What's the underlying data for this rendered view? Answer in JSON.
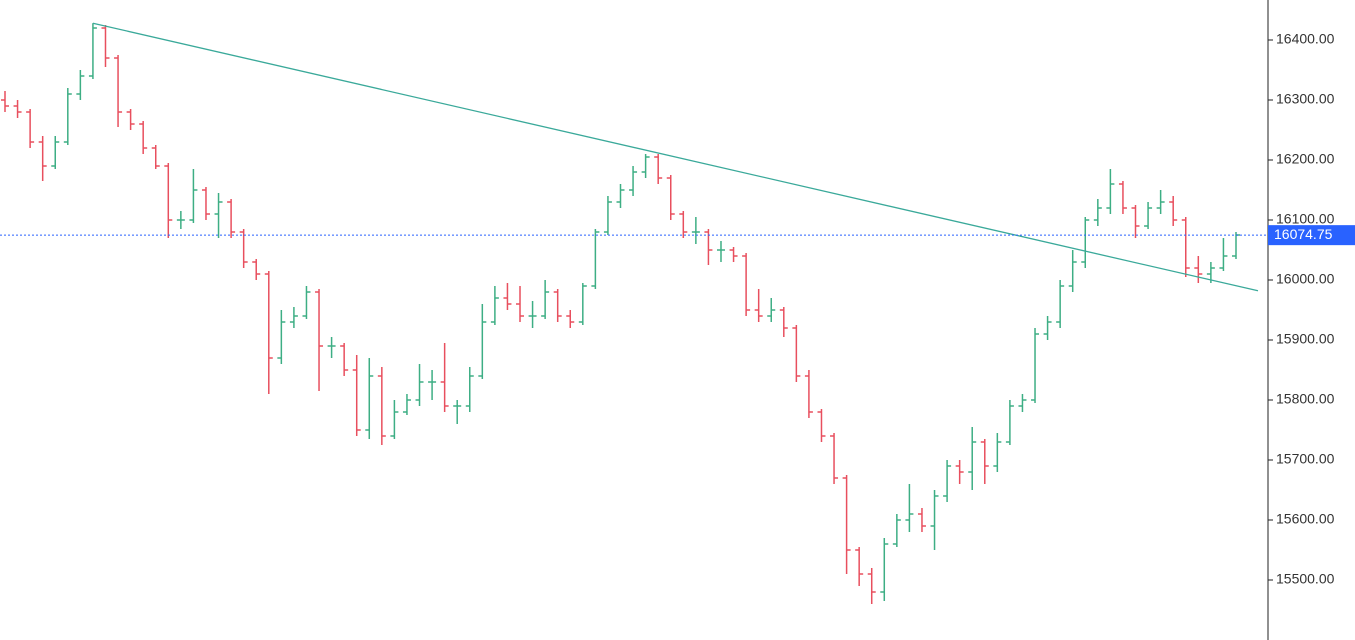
{
  "chart_data": {
    "type": "ohlc",
    "ylim": [
      15400,
      16466.67
    ],
    "yticks": [
      {
        "value": 15500,
        "label": "15500.00"
      },
      {
        "value": 15600,
        "label": "15600.00"
      },
      {
        "value": 15700,
        "label": "15700.00"
      },
      {
        "value": 15800,
        "label": "15800.00"
      },
      {
        "value": 15900,
        "label": "15900.00"
      },
      {
        "value": 16000,
        "label": "16000.00"
      },
      {
        "value": 16100,
        "label": "16100.00"
      },
      {
        "value": 16200,
        "label": "16200.00"
      },
      {
        "value": 16300,
        "label": "16300.00"
      },
      {
        "value": 16400,
        "label": "16400.00"
      }
    ],
    "up_color": "#3dae84",
    "down_color": "#e84f5e",
    "last_price": {
      "value": 16074.75,
      "label": "16074.75",
      "color": "#2962ff"
    },
    "trendline": {
      "start": 16428,
      "end": 15982,
      "color": "#3aa99a"
    },
    "ohlc": [
      [
        16300,
        16315,
        16280,
        16290
      ],
      [
        16290,
        16300,
        16270,
        16280
      ],
      [
        16280,
        16285,
        16220,
        16230
      ],
      [
        16230,
        16240,
        16165,
        16190
      ],
      [
        16190,
        16240,
        16185,
        16230
      ],
      [
        16230,
        16320,
        16225,
        16310
      ],
      [
        16310,
        16350,
        16300,
        16340
      ],
      [
        16340,
        16428,
        16335,
        16420
      ],
      [
        16420,
        16425,
        16355,
        16370
      ],
      [
        16370,
        16375,
        16255,
        16280
      ],
      [
        16280,
        16285,
        16250,
        16260
      ],
      [
        16260,
        16265,
        16210,
        16220
      ],
      [
        16220,
        16225,
        16185,
        16190
      ],
      [
        16190,
        16195,
        16070,
        16100
      ],
      [
        16100,
        16115,
        16085,
        16100
      ],
      [
        16100,
        16185,
        16095,
        16150
      ],
      [
        16150,
        16155,
        16100,
        16110
      ],
      [
        16110,
        16145,
        16070,
        16130
      ],
      [
        16130,
        16135,
        16070,
        16080
      ],
      [
        16080,
        16085,
        16020,
        16030
      ],
      [
        16030,
        16035,
        16000,
        16010
      ],
      [
        16010,
        16015,
        15810,
        15870
      ],
      [
        15870,
        15950,
        15860,
        15930
      ],
      [
        15930,
        15955,
        15920,
        15940
      ],
      [
        15940,
        15990,
        15935,
        15980
      ],
      [
        15980,
        15985,
        15815,
        15890
      ],
      [
        15890,
        15905,
        15870,
        15890
      ],
      [
        15890,
        15895,
        15840,
        15850
      ],
      [
        15850,
        15875,
        15740,
        15750
      ],
      [
        15750,
        15870,
        15735,
        15840
      ],
      [
        15840,
        15855,
        15725,
        15740
      ],
      [
        15740,
        15800,
        15735,
        15780
      ],
      [
        15780,
        15810,
        15775,
        15800
      ],
      [
        15800,
        15860,
        15790,
        15830
      ],
      [
        15830,
        15850,
        15800,
        15830
      ],
      [
        15830,
        15895,
        15780,
        15790
      ],
      [
        15790,
        15800,
        15760,
        15790
      ],
      [
        15790,
        15855,
        15780,
        15840
      ],
      [
        15840,
        15960,
        15835,
        15930
      ],
      [
        15930,
        15990,
        15925,
        15970
      ],
      [
        15970,
        15995,
        15950,
        15960
      ],
      [
        15960,
        15990,
        15930,
        15940
      ],
      [
        15940,
        15965,
        15920,
        15940
      ],
      [
        15940,
        16000,
        15935,
        15980
      ],
      [
        15980,
        15985,
        15930,
        15940
      ],
      [
        15940,
        15950,
        15920,
        15930
      ],
      [
        15930,
        15995,
        15925,
        15990
      ],
      [
        15990,
        16085,
        15985,
        16080
      ],
      [
        16080,
        16140,
        16075,
        16130
      ],
      [
        16130,
        16160,
        16120,
        16150
      ],
      [
        16150,
        16190,
        16140,
        16180
      ],
      [
        16180,
        16210,
        16170,
        16205
      ],
      [
        16205,
        16210,
        16160,
        16170
      ],
      [
        16170,
        16175,
        16100,
        16110
      ],
      [
        16110,
        16115,
        16070,
        16080
      ],
      [
        16080,
        16105,
        16060,
        16080
      ],
      [
        16080,
        16085,
        16025,
        16050
      ],
      [
        16050,
        16065,
        16030,
        16050
      ],
      [
        16050,
        16055,
        16030,
        16040
      ],
      [
        16040,
        16045,
        15940,
        15950
      ],
      [
        15950,
        15985,
        15930,
        15940
      ],
      [
        15940,
        15970,
        15930,
        15950
      ],
      [
        15950,
        15955,
        15905,
        15920
      ],
      [
        15920,
        15925,
        15830,
        15840
      ],
      [
        15840,
        15850,
        15770,
        15780
      ],
      [
        15780,
        15785,
        15730,
        15740
      ],
      [
        15740,
        15745,
        15660,
        15670
      ],
      [
        15670,
        15675,
        15510,
        15550
      ],
      [
        15550,
        15555,
        15490,
        15510
      ],
      [
        15510,
        15520,
        15460,
        15480
      ],
      [
        15480,
        15570,
        15465,
        15560
      ],
      [
        15560,
        15610,
        15555,
        15600
      ],
      [
        15600,
        15660,
        15580,
        15610
      ],
      [
        15610,
        15620,
        15580,
        15590
      ],
      [
        15590,
        15650,
        15550,
        15640
      ],
      [
        15640,
        15700,
        15630,
        15690
      ],
      [
        15690,
        15700,
        15660,
        15680
      ],
      [
        15680,
        15755,
        15650,
        15730
      ],
      [
        15730,
        15735,
        15660,
        15690
      ],
      [
        15690,
        15745,
        15680,
        15730
      ],
      [
        15730,
        15800,
        15725,
        15790
      ],
      [
        15790,
        15810,
        15780,
        15800
      ],
      [
        15800,
        15920,
        15795,
        15910
      ],
      [
        15910,
        15940,
        15900,
        15930
      ],
      [
        15930,
        16000,
        15920,
        15990
      ],
      [
        15990,
        16050,
        15980,
        16030
      ],
      [
        16030,
        16105,
        16020,
        16100
      ],
      [
        16100,
        16135,
        16090,
        16120
      ],
      [
        16120,
        16185,
        16110,
        16160
      ],
      [
        16160,
        16165,
        16110,
        16120
      ],
      [
        16120,
        16125,
        16070,
        16090
      ],
      [
        16090,
        16130,
        16085,
        16120
      ],
      [
        16120,
        16150,
        16110,
        16130
      ],
      [
        16130,
        16140,
        16090,
        16100
      ],
      [
        16100,
        16105,
        16005,
        16020
      ],
      [
        16020,
        16040,
        15995,
        16010
      ],
      [
        16010,
        16030,
        15995,
        16020
      ],
      [
        16020,
        16070,
        16015,
        16040
      ],
      [
        16040,
        16080,
        16035,
        16075
      ]
    ]
  }
}
